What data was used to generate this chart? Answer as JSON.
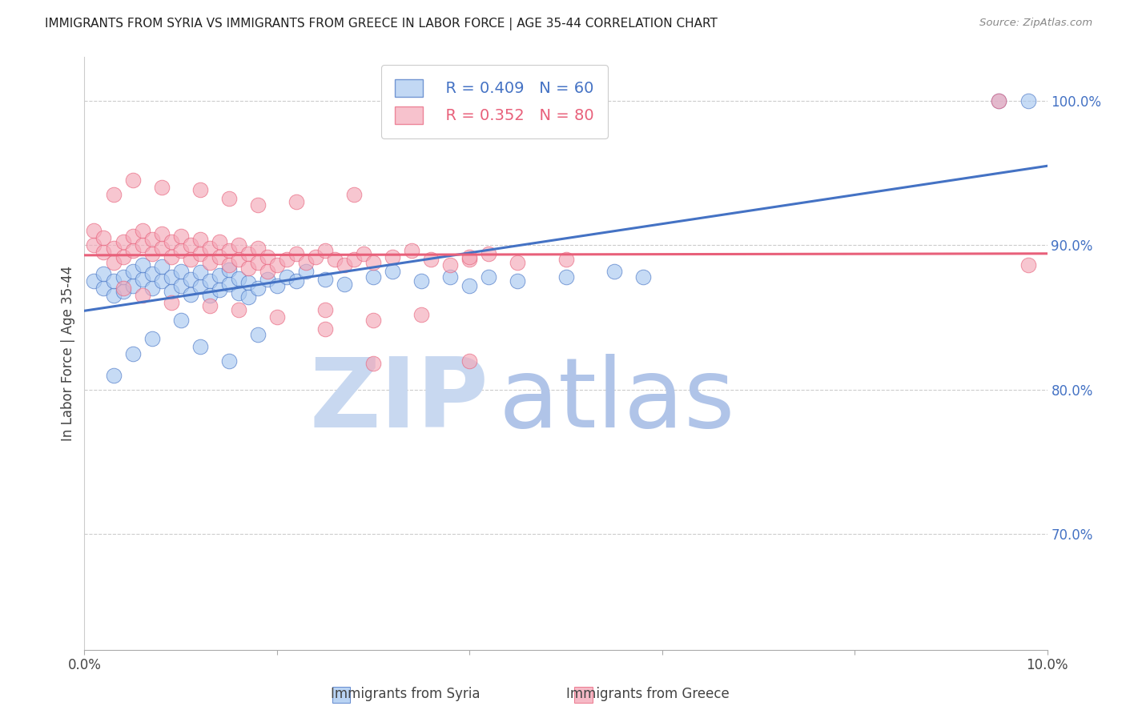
{
  "title": "IMMIGRANTS FROM SYRIA VS IMMIGRANTS FROM GREECE IN LABOR FORCE | AGE 35-44 CORRELATION CHART",
  "source": "Source: ZipAtlas.com",
  "ylabel_left": "In Labor Force | Age 35-44",
  "xlabel_label_syria": "Immigrants from Syria",
  "xlabel_label_greece": "Immigrants from Greece",
  "x_min": 0.0,
  "x_max": 0.1,
  "y_min": 0.62,
  "y_max": 1.03,
  "right_yticks": [
    0.7,
    0.8,
    0.9,
    1.0
  ],
  "right_ytick_labels": [
    "70.0%",
    "80.0%",
    "90.0%",
    "100.0%"
  ],
  "bottom_xticks": [
    0.0,
    0.02,
    0.04,
    0.06,
    0.08,
    0.1
  ],
  "bottom_xtick_labels": [
    "0.0%",
    "",
    "",
    "",
    "",
    "10.0%"
  ],
  "legend_syria_r": "R = 0.409",
  "legend_syria_n": "N = 60",
  "legend_greece_r": "R = 0.352",
  "legend_greece_n": "N = 80",
  "color_syria": "#A8C8F0",
  "color_greece": "#F4A8B8",
  "color_syria_line": "#4472C4",
  "color_greece_line": "#E8607A",
  "color_right_axis": "#4472C4",
  "watermark_zip": "ZIP",
  "watermark_atlas": "atlas",
  "watermark_color_zip": "#C8D8F0",
  "watermark_color_atlas": "#B0C4E8",
  "syria_x": [
    0.001,
    0.002,
    0.002,
    0.003,
    0.003,
    0.004,
    0.004,
    0.005,
    0.005,
    0.006,
    0.006,
    0.007,
    0.007,
    0.008,
    0.008,
    0.009,
    0.009,
    0.01,
    0.01,
    0.011,
    0.011,
    0.012,
    0.012,
    0.013,
    0.013,
    0.014,
    0.014,
    0.015,
    0.015,
    0.016,
    0.016,
    0.017,
    0.017,
    0.018,
    0.019,
    0.02,
    0.021,
    0.022,
    0.023,
    0.025,
    0.027,
    0.03,
    0.032,
    0.035,
    0.038,
    0.04,
    0.042,
    0.045,
    0.05,
    0.055,
    0.003,
    0.005,
    0.007,
    0.01,
    0.012,
    0.015,
    0.018,
    0.058,
    0.095,
    0.098
  ],
  "syria_y": [
    0.875,
    0.87,
    0.88,
    0.865,
    0.875,
    0.868,
    0.878,
    0.872,
    0.882,
    0.876,
    0.886,
    0.87,
    0.88,
    0.875,
    0.885,
    0.878,
    0.868,
    0.872,
    0.882,
    0.876,
    0.866,
    0.871,
    0.881,
    0.875,
    0.865,
    0.879,
    0.869,
    0.873,
    0.883,
    0.877,
    0.867,
    0.874,
    0.864,
    0.87,
    0.876,
    0.872,
    0.878,
    0.875,
    0.882,
    0.876,
    0.873,
    0.878,
    0.882,
    0.875,
    0.878,
    0.872,
    0.878,
    0.875,
    0.878,
    0.882,
    0.81,
    0.825,
    0.835,
    0.848,
    0.83,
    0.82,
    0.838,
    0.878,
    1.0,
    1.0
  ],
  "greece_x": [
    0.001,
    0.001,
    0.002,
    0.002,
    0.003,
    0.003,
    0.004,
    0.004,
    0.005,
    0.005,
    0.006,
    0.006,
    0.007,
    0.007,
    0.008,
    0.008,
    0.009,
    0.009,
    0.01,
    0.01,
    0.011,
    0.011,
    0.012,
    0.012,
    0.013,
    0.013,
    0.014,
    0.014,
    0.015,
    0.015,
    0.016,
    0.016,
    0.017,
    0.017,
    0.018,
    0.018,
    0.019,
    0.019,
    0.02,
    0.021,
    0.022,
    0.023,
    0.024,
    0.025,
    0.026,
    0.027,
    0.028,
    0.029,
    0.03,
    0.032,
    0.034,
    0.036,
    0.038,
    0.04,
    0.042,
    0.045,
    0.02,
    0.025,
    0.03,
    0.035,
    0.003,
    0.005,
    0.008,
    0.012,
    0.015,
    0.018,
    0.022,
    0.028,
    0.04,
    0.05,
    0.004,
    0.006,
    0.009,
    0.013,
    0.016,
    0.025,
    0.04,
    0.03,
    0.095,
    0.098
  ],
  "greece_y": [
    0.9,
    0.91,
    0.895,
    0.905,
    0.888,
    0.898,
    0.892,
    0.902,
    0.896,
    0.906,
    0.9,
    0.91,
    0.904,
    0.894,
    0.898,
    0.908,
    0.902,
    0.892,
    0.896,
    0.906,
    0.9,
    0.89,
    0.894,
    0.904,
    0.898,
    0.888,
    0.892,
    0.902,
    0.896,
    0.886,
    0.89,
    0.9,
    0.894,
    0.884,
    0.888,
    0.898,
    0.892,
    0.882,
    0.886,
    0.89,
    0.894,
    0.888,
    0.892,
    0.896,
    0.89,
    0.886,
    0.89,
    0.894,
    0.888,
    0.892,
    0.896,
    0.89,
    0.886,
    0.89,
    0.894,
    0.888,
    0.85,
    0.855,
    0.848,
    0.852,
    0.935,
    0.945,
    0.94,
    0.938,
    0.932,
    0.928,
    0.93,
    0.935,
    0.892,
    0.89,
    0.87,
    0.865,
    0.86,
    0.858,
    0.855,
    0.842,
    0.82,
    0.818,
    1.0,
    0.886
  ]
}
